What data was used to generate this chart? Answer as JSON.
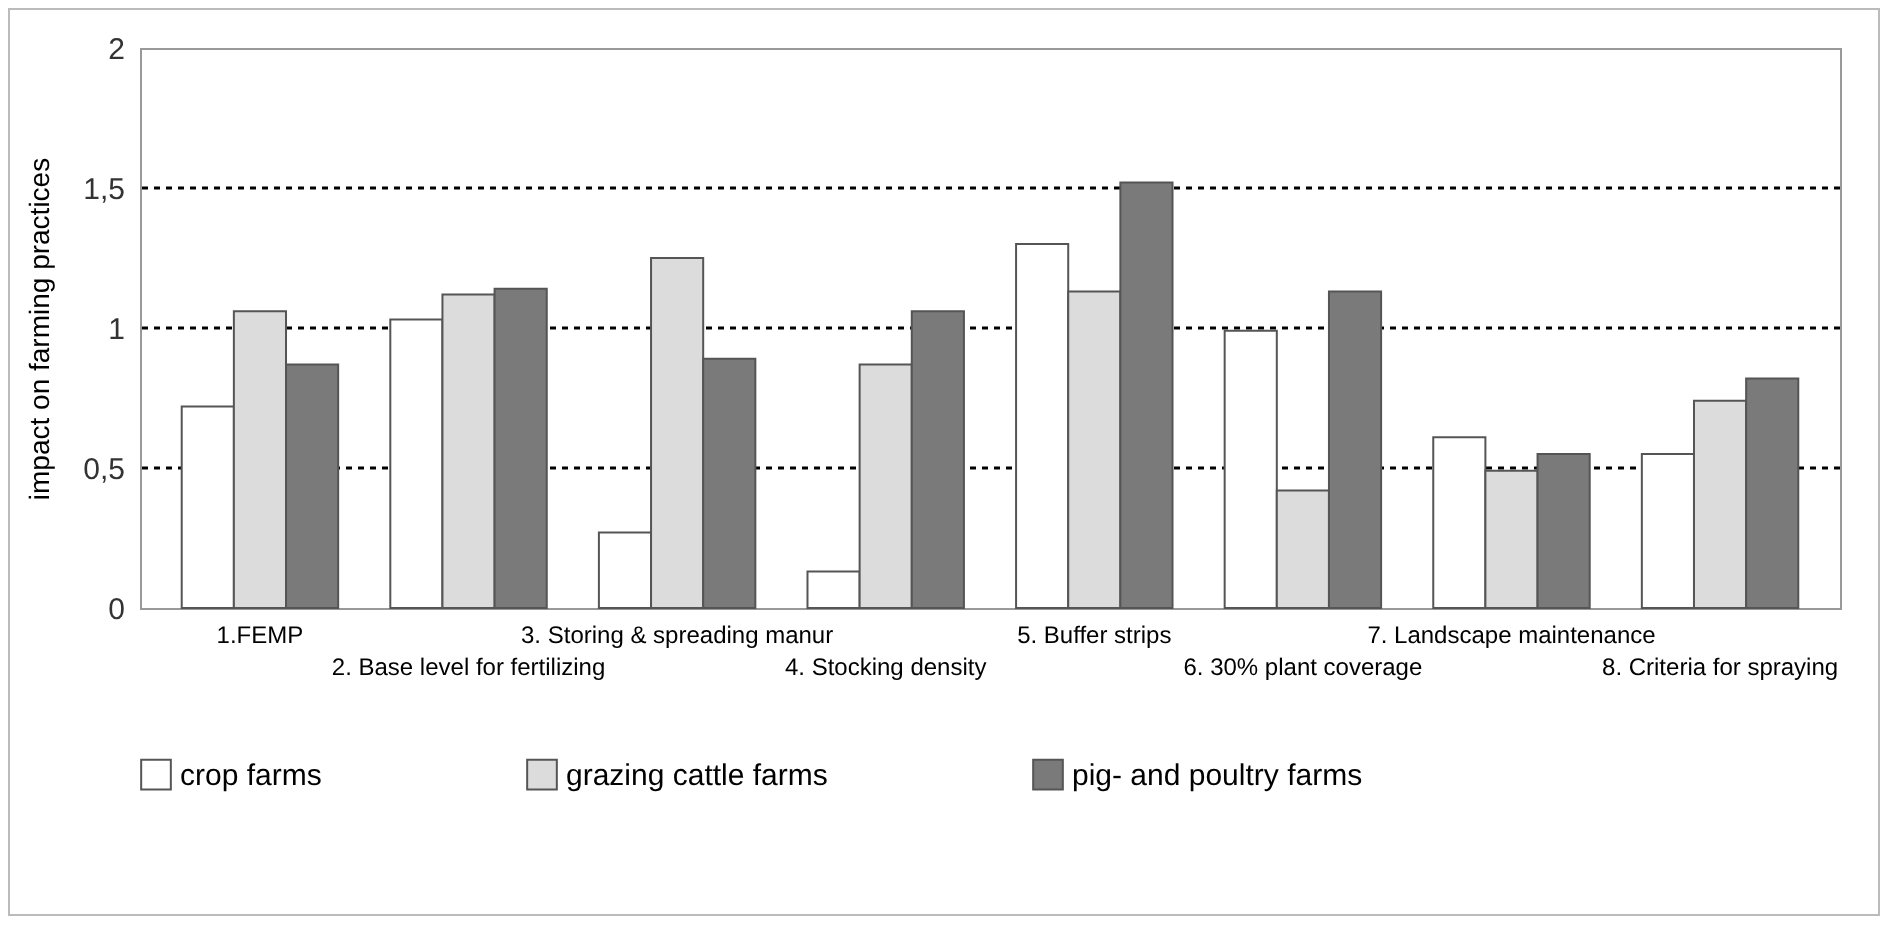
{
  "chart_data": {
    "type": "bar",
    "ylabel": "impact on farming practices",
    "categories": [
      "1.FEMP",
      "2. Base level for fertilizing",
      "3. Storing & spreading manur",
      "4. Stocking density",
      "5. Buffer strips",
      "6. 30% plant coverage",
      "7. Landscape maintenance",
      "8. Criteria for spraying"
    ],
    "series": [
      {
        "name": "crop farms",
        "color": "#ffffff",
        "values": [
          0.72,
          1.03,
          0.27,
          0.13,
          1.3,
          0.99,
          0.61,
          0.55
        ]
      },
      {
        "name": "grazing cattle farms",
        "color": "#dcdcdc",
        "values": [
          1.06,
          1.12,
          1.25,
          0.87,
          1.13,
          0.42,
          0.49,
          0.74
        ]
      },
      {
        "name": "pig- and poultry farms",
        "color": "#7a7a7a",
        "values": [
          0.87,
          1.14,
          0.89,
          1.06,
          1.52,
          1.13,
          0.55,
          0.82
        ]
      }
    ],
    "ylim": [
      0,
      2
    ],
    "yticks": [
      0,
      {
        "value": 0.5,
        "label": "0,5"
      },
      1,
      {
        "value": 1.5,
        "label": "1,5"
      },
      2
    ],
    "grid": "y",
    "legend": "bottom"
  }
}
